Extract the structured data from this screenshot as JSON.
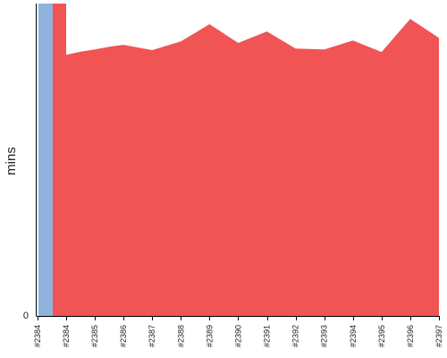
{
  "chart_data": {
    "type": "area",
    "title": "",
    "xlabel": "",
    "ylabel": "mins",
    "y_ticks": [
      "0"
    ],
    "categories": [
      "#2384",
      "#2385",
      "#2386",
      "#2387",
      "#2388",
      "#2389",
      "#2390",
      "#2391",
      "#2392",
      "#2393",
      "#2394",
      "#2395",
      "#2396",
      "#2397"
    ],
    "axis_labels": [
      "#2384",
      "#2384",
      "#2385",
      "#2386",
      "#2387",
      "#2388",
      "#2389",
      "#2390",
      "#2391",
      "#2392",
      "#2393",
      "#2394",
      "#2395",
      "#2396",
      "#2397"
    ],
    "ylim": [
      0,
      100
    ],
    "grid": false,
    "legend": "none",
    "series": [
      {
        "color": "#8fb3dd",
        "x": [
          "#2384"
        ],
        "values": [
          100
        ]
      },
      {
        "color": "#f05454",
        "points": [
          {
            "x": 2383.5,
            "y": 100
          },
          {
            "x": 2384.0,
            "y": 100
          },
          {
            "x": 2384.0,
            "y": 83.6
          },
          {
            "x": 2384.5,
            "y": 84.6
          },
          {
            "x": 2385.0,
            "y": 85.3
          },
          {
            "x": 2385.5,
            "y": 86.2
          },
          {
            "x": 2386.0,
            "y": 86.8
          },
          {
            "x": 2387.0,
            "y": 85.1
          },
          {
            "x": 2388.0,
            "y": 87.9
          },
          {
            "x": 2389.0,
            "y": 93.4
          },
          {
            "x": 2390.0,
            "y": 87.4
          },
          {
            "x": 2391.0,
            "y": 91.1
          },
          {
            "x": 2392.0,
            "y": 85.6
          },
          {
            "x": 2393.0,
            "y": 85.3
          },
          {
            "x": 2394.0,
            "y": 88.2
          },
          {
            "x": 2395.0,
            "y": 84.5
          },
          {
            "x": 2396.0,
            "y": 95.1
          },
          {
            "x": 2397.0,
            "y": 89.0
          }
        ]
      }
    ]
  }
}
